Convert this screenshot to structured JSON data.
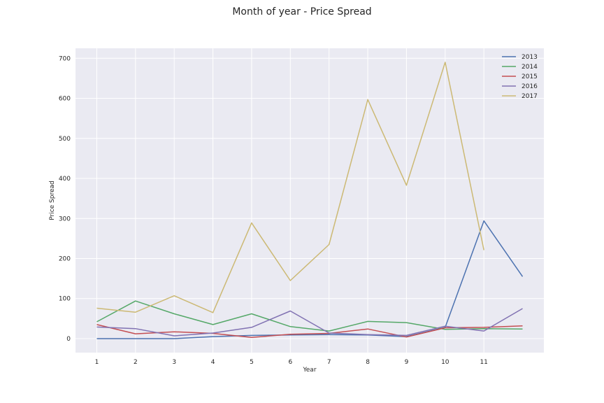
{
  "chart_data": {
    "type": "line",
    "title": "Month of year - Price Spread",
    "xlabel": "Year",
    "ylabel": "Price Spread",
    "x_ticks": [
      1,
      2,
      3,
      4,
      5,
      6,
      7,
      8,
      9,
      10,
      11
    ],
    "y_ticks": [
      0,
      100,
      200,
      300,
      400,
      500,
      600,
      700
    ],
    "xlim": [
      0.45,
      12.55
    ],
    "ylim": [
      -35,
      725
    ],
    "grid": true,
    "legend_position": "top-right",
    "series": [
      {
        "name": "2013",
        "color": "#4c72b0",
        "x": [
          1,
          2,
          3,
          4,
          5,
          6,
          7,
          8,
          9,
          10,
          11,
          12
        ],
        "y": [
          0,
          0,
          0,
          5,
          8,
          9,
          10,
          9,
          5,
          28,
          294,
          155
        ]
      },
      {
        "name": "2014",
        "color": "#55a868",
        "x": [
          1,
          2,
          3,
          4,
          5,
          6,
          7,
          8,
          9,
          10,
          11,
          12
        ],
        "y": [
          42,
          94,
          62,
          35,
          62,
          30,
          19,
          43,
          40,
          23,
          25,
          24
        ]
      },
      {
        "name": "2015",
        "color": "#c44e52",
        "x": [
          1,
          2,
          3,
          4,
          5,
          6,
          7,
          8,
          9,
          10,
          11,
          12
        ],
        "y": [
          35,
          12,
          17,
          13,
          3,
          11,
          13,
          24,
          4,
          27,
          28,
          32
        ]
      },
      {
        "name": "2016",
        "color": "#8172b2",
        "x": [
          1,
          2,
          3,
          4,
          5,
          6,
          7,
          8,
          9,
          10,
          11,
          12
        ],
        "y": [
          29,
          25,
          7,
          14,
          28,
          69,
          14,
          10,
          8,
          31,
          19,
          75
        ]
      },
      {
        "name": "2017",
        "color": "#ccb974",
        "x": [
          1,
          2,
          3,
          4,
          5,
          6,
          7,
          8,
          9,
          10,
          11
        ],
        "y": [
          76,
          66,
          107,
          65,
          289,
          145,
          235,
          597,
          383,
          690,
          221
        ]
      }
    ]
  }
}
